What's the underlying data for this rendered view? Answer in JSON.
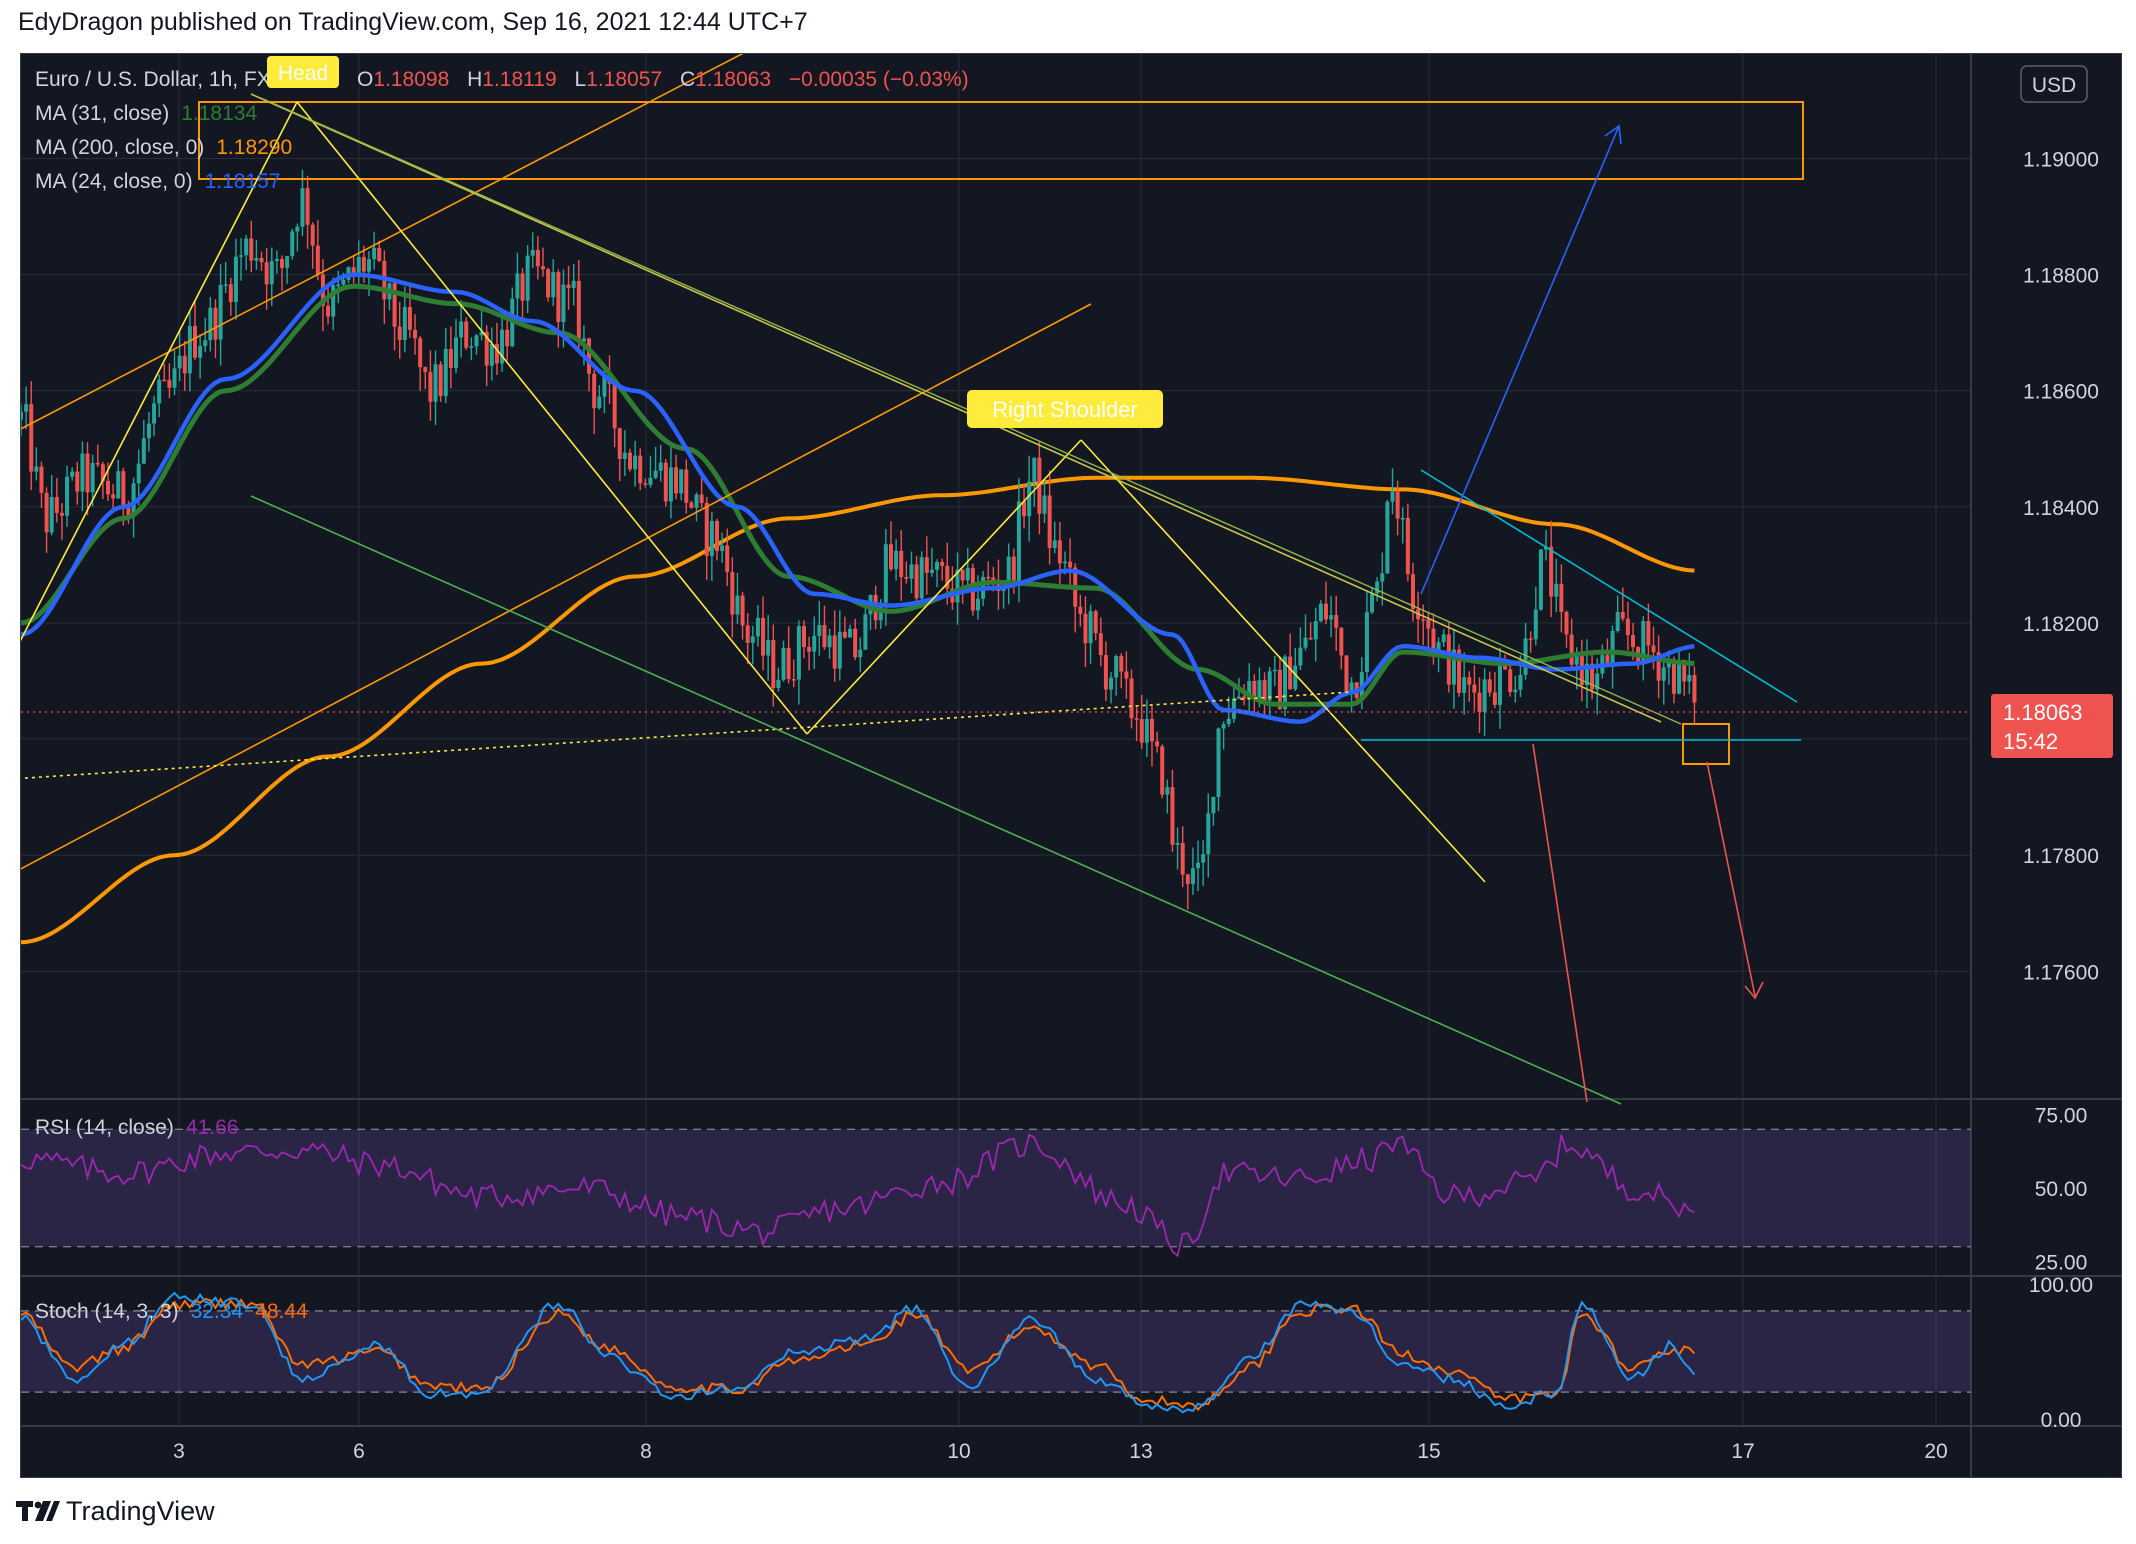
{
  "header": {
    "published_by": "EdyDragon published on TradingView.com, Sep 16, 2021 12:44 UTC+7"
  },
  "footer": {
    "brand": "TradingView"
  },
  "colors": {
    "background": "#131722",
    "up_candle": "#26a69a",
    "down_candle": "#ef5350",
    "ma31": "#1b5e20",
    "ma200": "#ff9800",
    "ma24": "#2962ff",
    "rsi": "#9c27b0",
    "stoch_k": "#2196f3",
    "stoch_d": "#ff6d00",
    "annotation_yellow": "#ffeb3b",
    "annotation_orange": "#ff9800",
    "annotation_green": "#4caf50",
    "annotation_cyan": "#00bcd4",
    "price_tag": "#ef5350"
  },
  "main_legend": {
    "symbol": "Euro / U.S. Dollar, 1h, FXCM",
    "ohlc": {
      "o_label": "O",
      "o": "1.18098",
      "h_label": "H",
      "h": "1.18119",
      "l_label": "L",
      "l": "1.18057",
      "c_label": "C",
      "c": "1.18063",
      "change": "−0.00035 (−0.03%)"
    },
    "indicators": [
      {
        "label": "MA (31, close)",
        "value": "1.18134",
        "color": "#1b5e20"
      },
      {
        "label": "MA (200, close, 0)",
        "value": "1.18290",
        "color": "#ff9800"
      },
      {
        "label": "MA (24, close, 0)",
        "value": "1.18157",
        "color": "#2962ff"
      }
    ]
  },
  "annotations": {
    "head_label": "Head",
    "right_shoulder_label": "Right Shoulder"
  },
  "price_axis": {
    "currency_button": "USD",
    "last_price": "1.18063",
    "countdown": "15:42"
  },
  "rsi_legend": {
    "label": "RSI (14, close)",
    "value": "41.66"
  },
  "stoch_legend": {
    "label": "Stoch (14, 3, 3)",
    "k_value": "32.34",
    "d_value": "48.44"
  },
  "chart_data": [
    {
      "type": "candlestick",
      "title": "Euro / U.S. Dollar, 1h, FXCM",
      "x_tick_labels": [
        "3",
        "6",
        "8",
        "10",
        "13",
        "15",
        "17",
        "20"
      ],
      "y_tick_labels": [
        "1.19000",
        "1.18800",
        "1.18600",
        "1.18400",
        "1.18200",
        "1.17800",
        "1.17600"
      ],
      "ylim": [
        1.1738,
        1.1918
      ],
      "last_close": 1.18063,
      "price_path_key_points": [
        [
          0,
          1.1855
        ],
        [
          10,
          1.1838
        ],
        [
          25,
          1.1845
        ],
        [
          40,
          1.1842
        ],
        [
          55,
          1.1858
        ],
        [
          70,
          1.187
        ],
        [
          90,
          1.1885
        ],
        [
          100,
          1.188
        ],
        [
          110,
          1.1893
        ],
        [
          120,
          1.1875
        ],
        [
          135,
          1.1882
        ],
        [
          150,
          1.187
        ],
        [
          160,
          1.186
        ],
        [
          175,
          1.187
        ],
        [
          185,
          1.1868
        ],
        [
          200,
          1.188
        ],
        [
          215,
          1.1875
        ],
        [
          225,
          1.186
        ],
        [
          240,
          1.1848
        ],
        [
          255,
          1.1845
        ],
        [
          270,
          1.1835
        ],
        [
          285,
          1.1818
        ],
        [
          295,
          1.1812
        ],
        [
          310,
          1.1818
        ],
        [
          325,
          1.1815
        ],
        [
          340,
          1.183
        ],
        [
          355,
          1.1828
        ],
        [
          370,
          1.1825
        ],
        [
          385,
          1.1828
        ],
        [
          395,
          1.1845
        ],
        [
          405,
          1.1832
        ],
        [
          415,
          1.182
        ],
        [
          425,
          1.1812
        ],
        [
          435,
          1.1805
        ],
        [
          445,
          1.1795
        ],
        [
          452,
          1.178
        ],
        [
          460,
          1.1775
        ],
        [
          470,
          1.1805
        ],
        [
          480,
          1.181
        ],
        [
          490,
          1.1808
        ],
        [
          500,
          1.1815
        ],
        [
          510,
          1.1822
        ],
        [
          520,
          1.181
        ],
        [
          530,
          1.1825
        ],
        [
          535,
          1.1845
        ],
        [
          545,
          1.1825
        ],
        [
          555,
          1.1815
        ],
        [
          565,
          1.1808
        ],
        [
          575,
          1.181
        ],
        [
          585,
          1.1812
        ],
        [
          595,
          1.183
        ],
        [
          605,
          1.1815
        ],
        [
          615,
          1.181
        ],
        [
          625,
          1.1818
        ],
        [
          635,
          1.1816
        ],
        [
          645,
          1.1812
        ],
        [
          655,
          1.1806
        ]
      ],
      "x_range": [
        0,
        655
      ],
      "series": [
        {
          "name": "MA (31, close)",
          "key_points": [
            [
              0,
              1.182
            ],
            [
              40,
              1.1838
            ],
            [
              80,
              1.186
            ],
            [
              130,
              1.1878
            ],
            [
              170,
              1.1875
            ],
            [
              210,
              1.187
            ],
            [
              260,
              1.185
            ],
            [
              300,
              1.1828
            ],
            [
              340,
              1.1822
            ],
            [
              380,
              1.1827
            ],
            [
              420,
              1.1826
            ],
            [
              460,
              1.1812
            ],
            [
              490,
              1.1806
            ],
            [
              520,
              1.1806
            ],
            [
              540,
              1.1815
            ],
            [
              580,
              1.1813
            ],
            [
              620,
              1.1815
            ],
            [
              655,
              1.1813
            ]
          ]
        },
        {
          "name": "MA (200, close, 0)",
          "key_points": [
            [
              0,
              1.1765
            ],
            [
              60,
              1.178
            ],
            [
              120,
              1.1797
            ],
            [
              180,
              1.1813
            ],
            [
              240,
              1.1828
            ],
            [
              300,
              1.1838
            ],
            [
              360,
              1.1842
            ],
            [
              420,
              1.1845
            ],
            [
              480,
              1.1845
            ],
            [
              540,
              1.1843
            ],
            [
              600,
              1.1837
            ],
            [
              655,
              1.1829
            ]
          ]
        },
        {
          "name": "MA (24, close, 0)",
          "key_points": [
            [
              0,
              1.1818
            ],
            [
              40,
              1.184
            ],
            [
              80,
              1.1862
            ],
            [
              130,
              1.188
            ],
            [
              170,
              1.1877
            ],
            [
              200,
              1.1872
            ],
            [
              240,
              1.186
            ],
            [
              280,
              1.184
            ],
            [
              310,
              1.1825
            ],
            [
              340,
              1.1823
            ],
            [
              380,
              1.1826
            ],
            [
              410,
              1.1829
            ],
            [
              450,
              1.1818
            ],
            [
              470,
              1.1805
            ],
            [
              500,
              1.1803
            ],
            [
              520,
              1.1808
            ],
            [
              540,
              1.1816
            ],
            [
              570,
              1.1814
            ],
            [
              600,
              1.1812
            ],
            [
              630,
              1.1813
            ],
            [
              655,
              1.1816
            ]
          ]
        }
      ]
    },
    {
      "type": "line",
      "title": "RSI (14, close)",
      "y_tick_labels": [
        "75.00",
        "50.00",
        "25.00"
      ],
      "ylim": [
        20,
        80
      ],
      "bands": [
        30,
        70
      ],
      "series": [
        {
          "name": "RSI (14, close)",
          "key_points": [
            [
              0,
              60
            ],
            [
              40,
              55
            ],
            [
              80,
              62
            ],
            [
              110,
              63
            ],
            [
              140,
              58
            ],
            [
              180,
              47
            ],
            [
              220,
              50
            ],
            [
              260,
              40
            ],
            [
              290,
              35
            ],
            [
              320,
              43
            ],
            [
              360,
              52
            ],
            [
              395,
              65
            ],
            [
              430,
              45
            ],
            [
              455,
              30
            ],
            [
              470,
              55
            ],
            [
              500,
              53
            ],
            [
              530,
              60
            ],
            [
              535,
              66
            ],
            [
              560,
              47
            ],
            [
              590,
              52
            ],
            [
              605,
              65
            ],
            [
              630,
              50
            ],
            [
              655,
              41.66
            ]
          ]
        }
      ]
    },
    {
      "type": "line",
      "title": "Stoch (14, 3, 3)",
      "y_tick_labels": [
        "100.00",
        "0.00"
      ],
      "ylim": [
        -5,
        105
      ],
      "bands": [
        20,
        80
      ],
      "series": [
        {
          "name": "%K",
          "key_points": [
            [
              0,
              75
            ],
            [
              20,
              30
            ],
            [
              40,
              55
            ],
            [
              60,
              90
            ],
            [
              90,
              85
            ],
            [
              110,
              30
            ],
            [
              140,
              55
            ],
            [
              160,
              18
            ],
            [
              180,
              20
            ],
            [
              210,
              85
            ],
            [
              230,
              45
            ],
            [
              255,
              18
            ],
            [
              280,
              22
            ],
            [
              300,
              48
            ],
            [
              330,
              60
            ],
            [
              350,
              82
            ],
            [
              370,
              25
            ],
            [
              395,
              75
            ],
            [
              420,
              30
            ],
            [
              440,
              10
            ],
            [
              460,
              8
            ],
            [
              480,
              45
            ],
            [
              500,
              85
            ],
            [
              520,
              80
            ],
            [
              540,
              40
            ],
            [
              560,
              30
            ],
            [
              580,
              10
            ],
            [
              600,
              20
            ],
            [
              610,
              85
            ],
            [
              630,
              30
            ],
            [
              645,
              55
            ],
            [
              655,
              32.34
            ]
          ]
        },
        {
          "name": "%D",
          "key_points": [
            [
              0,
              78
            ],
            [
              20,
              38
            ],
            [
              40,
              52
            ],
            [
              60,
              85
            ],
            [
              90,
              86
            ],
            [
              110,
              40
            ],
            [
              140,
              50
            ],
            [
              160,
              25
            ],
            [
              180,
              22
            ],
            [
              210,
              78
            ],
            [
              230,
              52
            ],
            [
              255,
              24
            ],
            [
              280,
              22
            ],
            [
              300,
              42
            ],
            [
              330,
              55
            ],
            [
              350,
              78
            ],
            [
              370,
              35
            ],
            [
              395,
              68
            ],
            [
              420,
              40
            ],
            [
              440,
              14
            ],
            [
              460,
              10
            ],
            [
              480,
              38
            ],
            [
              500,
              80
            ],
            [
              520,
              82
            ],
            [
              540,
              48
            ],
            [
              560,
              35
            ],
            [
              580,
              15
            ],
            [
              600,
              18
            ],
            [
              610,
              78
            ],
            [
              630,
              38
            ],
            [
              645,
              52
            ],
            [
              655,
              48.44
            ]
          ]
        }
      ]
    }
  ]
}
